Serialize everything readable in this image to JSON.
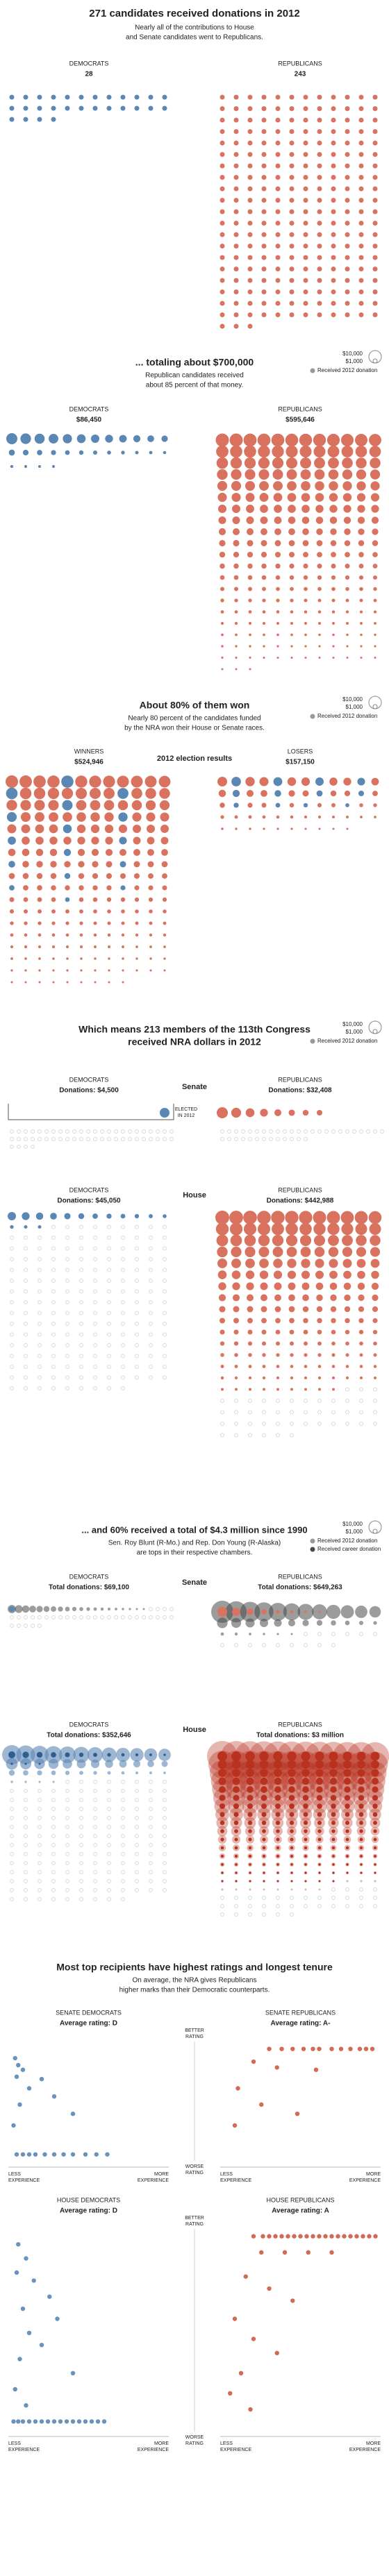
{
  "colors": {
    "dem": "#5b87b5",
    "rep": "#d9735f",
    "dem_dark": "#2f5f8f",
    "rep_dark": "#b8321f",
    "empty": "#d9d9d9",
    "career": "#4a4a4a"
  },
  "legend": {
    "large": "$10,000",
    "small": "$1,000",
    "received": "Received 2012 donation",
    "career": "Received career donation"
  },
  "s1": {
    "title": "271 candidates received donations in 2012",
    "subtitle": [
      "Nearly all of the contributions to House",
      "and Senate candidates went to Republicans."
    ],
    "dem": {
      "label": "DEMOCRATS",
      "count": 28
    },
    "rep": {
      "label": "REPUBLICANS",
      "count": 243
    }
  },
  "s2": {
    "title": "... totaling about $700,000",
    "subtitle": [
      "Republican candidates received",
      "about 85 percent of that money."
    ],
    "dem": {
      "label": "DEMOCRATS",
      "total": "$86,450",
      "dots": 28
    },
    "rep": {
      "label": "REPUBLICANS",
      "total": "$595,646",
      "dots": 243
    }
  },
  "s3": {
    "title": "About 80% of them won",
    "subtitle": [
      "Nearly 80 percent of the candidates funded",
      "by the NRA won their House or Senate races."
    ],
    "center": "2012 election results",
    "winners": {
      "label": "WINNERS",
      "total": "$524,946",
      "dem_dots": 16,
      "rep_dots": 197
    },
    "losers": {
      "label": "LOSERS",
      "total": "$157,150",
      "dem_dots": 12,
      "rep_dots": 46
    }
  },
  "s4": {
    "title": [
      "Which means 213 members of the 113th Congress",
      "received NRA dollars in 2012"
    ],
    "senate": {
      "label": "Senate",
      "elected": [
        "ELECTED",
        "IN 2012"
      ],
      "dem": {
        "label": "DEMOCRATS",
        "total": "Donations: $4,500",
        "dots": 1,
        "empty": 52
      },
      "rep": {
        "label": "REPUBLICANS",
        "total": "Donations: $32,408",
        "dots": 8,
        "empty": 37
      }
    },
    "house": {
      "label": "House",
      "dem": {
        "label": "DEMOCRATS",
        "total": "Donations: $45,050",
        "dots": 15,
        "empty": 186
      },
      "rep": {
        "label": "REPUBLICANS",
        "total": "Donations: $442,988",
        "dots": 189,
        "empty": 45
      }
    }
  },
  "s5": {
    "title": "... and 60% received a total of $4.3 million since 1990",
    "subtitle": [
      "Sen. Roy Blunt (R-Mo.) and Rep. Don Young (R-Alaska)",
      "are tops in their respective chambers."
    ],
    "senate": {
      "label": "Senate",
      "dem": {
        "label": "DEMOCRATS",
        "total": "Total donations: $69,100",
        "career": 20,
        "dots_2012": 1,
        "empty": 33
      },
      "rep": {
        "label": "REPUBLICANS",
        "total": "Total donations: $649,263",
        "career": 30,
        "dots_2012": 8,
        "empty": 15
      }
    },
    "house": {
      "label": "House",
      "dem": {
        "label": "DEMOCRATS",
        "total": "Total donations: $352,646",
        "career": 40,
        "dots_2012": 15,
        "empty": 161
      },
      "rep": {
        "label": "REPUBLICANS",
        "total": "Total donations: $3 million",
        "career": 200,
        "dots_2012": 189,
        "empty": 34
      }
    }
  },
  "s6": {
    "title": "Most top recipients have highest ratings and longest tenure",
    "subtitle": [
      "On average, the NRA gives Republicans",
      "higher marks than their Democratic counterparts."
    ],
    "better": [
      "BETTER",
      "RATING"
    ],
    "worse": [
      "WORSE",
      "RATING"
    ],
    "less": [
      "LESS",
      "EXPERIENCE"
    ],
    "more": [
      "MORE",
      "EXPERIENCE"
    ],
    "xlim": [
      0,
      100
    ],
    "ylim": [
      0,
      100
    ],
    "panels": [
      {
        "label": "SENATE DEMOCRATS",
        "rating": "Average rating: D",
        "color": "#4f7fb0",
        "x": [
          3,
          5,
          4,
          8,
          12,
          20,
          28,
          40,
          6,
          2,
          4,
          8,
          12,
          16,
          22,
          28,
          34,
          40,
          48,
          55,
          62
        ],
        "y": [
          88,
          82,
          72,
          78,
          62,
          70,
          55,
          40,
          48,
          30,
          5,
          5,
          5,
          5,
          5,
          5,
          5,
          5,
          5,
          5,
          5
        ]
      },
      {
        "label": "SENATE REPUBLICANS",
        "rating": "Average rating: A-",
        "color": "#c9503a",
        "x": [
          30,
          38,
          45,
          52,
          58,
          62,
          70,
          76,
          82,
          88,
          92,
          96,
          20,
          35,
          60,
          10,
          25,
          8,
          48
        ],
        "y": [
          96,
          96,
          96,
          96,
          96,
          96,
          96,
          96,
          96,
          96,
          96,
          96,
          85,
          80,
          78,
          62,
          48,
          30,
          40
        ]
      },
      {
        "label": "HOUSE DEMOCRATS",
        "rating": "Average rating: D",
        "color": "#4f7fb0",
        "x": [
          5,
          10,
          4,
          15,
          25,
          8,
          30,
          12,
          20,
          6,
          40,
          3,
          10,
          2,
          5,
          8,
          12,
          16,
          20,
          24,
          28,
          32,
          36,
          40,
          44,
          48,
          52,
          56,
          60
        ],
        "y": [
          92,
          85,
          78,
          74,
          66,
          60,
          55,
          48,
          42,
          35,
          28,
          20,
          12,
          4,
          4,
          4,
          4,
          4,
          4,
          4,
          4,
          4,
          4,
          4,
          4,
          4,
          4,
          4,
          4
        ]
      },
      {
        "label": "HOUSE REPUBLICANS",
        "rating": "Average rating: A",
        "color": "#c9503a",
        "x": [
          20,
          26,
          30,
          34,
          38,
          42,
          46,
          50,
          54,
          58,
          62,
          66,
          70,
          74,
          78,
          82,
          86,
          90,
          94,
          98,
          25,
          40,
          55,
          70,
          15,
          30,
          45,
          8,
          20,
          35,
          12,
          5,
          18
        ],
        "y": [
          96,
          96,
          96,
          96,
          96,
          96,
          96,
          96,
          96,
          96,
          96,
          96,
          96,
          96,
          96,
          96,
          96,
          96,
          96,
          96,
          88,
          88,
          88,
          88,
          76,
          70,
          64,
          55,
          45,
          38,
          28,
          18,
          10
        ]
      }
    ]
  }
}
